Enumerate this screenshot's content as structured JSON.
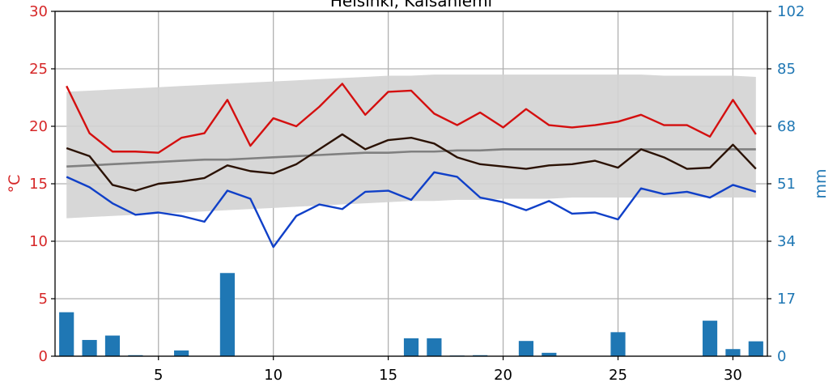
{
  "chart_data": {
    "type": "bar+line",
    "title": "Helsinki, Kaisaniemi",
    "ylabel_left": "°C",
    "ylabel_right": "mm",
    "xlim": [
      0.5,
      31.5
    ],
    "ylim_left": [
      0,
      30
    ],
    "ylim_right": [
      0,
      102
    ],
    "xticks": [
      5,
      10,
      15,
      20,
      25,
      30
    ],
    "yticks_left": [
      0,
      5,
      10,
      15,
      20,
      25,
      30
    ],
    "yticks_right": [
      0,
      17,
      34,
      51,
      68,
      85,
      102
    ],
    "grid": true,
    "x": [
      1,
      2,
      3,
      4,
      5,
      6,
      7,
      8,
      9,
      10,
      11,
      12,
      13,
      14,
      15,
      16,
      17,
      18,
      19,
      20,
      21,
      22,
      23,
      24,
      25,
      26,
      27,
      28,
      29,
      30,
      31
    ],
    "normal_range": {
      "upper": [
        23.0,
        23.1,
        23.2,
        23.3,
        23.4,
        23.5,
        23.6,
        23.7,
        23.8,
        23.9,
        24.0,
        24.1,
        24.2,
        24.3,
        24.4,
        24.4,
        24.5,
        24.5,
        24.5,
        24.5,
        24.5,
        24.5,
        24.5,
        24.5,
        24.5,
        24.5,
        24.4,
        24.4,
        24.4,
        24.4,
        24.3
      ],
      "lower": [
        12.0,
        12.1,
        12.2,
        12.3,
        12.4,
        12.5,
        12.6,
        12.7,
        12.8,
        12.9,
        13.0,
        13.1,
        13.2,
        13.3,
        13.4,
        13.5,
        13.5,
        13.6,
        13.6,
        13.7,
        13.7,
        13.7,
        13.8,
        13.8,
        13.8,
        13.8,
        13.8,
        13.8,
        13.8,
        13.8,
        13.8
      ],
      "color": "#d3d3d3"
    },
    "series": [
      {
        "style": "max",
        "color": "#d40f0f",
        "values": [
          23.5,
          19.4,
          17.8,
          17.8,
          17.7,
          19.0,
          19.4,
          22.3,
          18.3,
          20.7,
          20.0,
          21.7,
          23.7,
          21.0,
          23.0,
          23.1,
          21.1,
          20.1,
          21.2,
          19.9,
          21.5,
          20.1,
          19.9,
          20.1,
          20.4,
          21.0,
          20.1,
          20.1,
          19.1,
          22.3,
          19.3
        ]
      },
      {
        "style": "mean",
        "color": "#2b1204",
        "values": [
          18.1,
          17.4,
          14.9,
          14.4,
          15.0,
          15.2,
          15.5,
          16.6,
          16.1,
          15.9,
          16.7,
          18.0,
          19.3,
          18.0,
          18.8,
          19.0,
          18.5,
          17.3,
          16.7,
          16.5,
          16.3,
          16.6,
          16.7,
          17.0,
          16.4,
          18.0,
          17.3,
          16.3,
          16.4,
          18.4,
          16.3
        ]
      },
      {
        "style": "min",
        "color": "#1040c8",
        "values": [
          15.6,
          14.7,
          13.3,
          12.3,
          12.5,
          12.2,
          11.7,
          14.4,
          13.7,
          9.5,
          12.2,
          13.2,
          12.8,
          14.3,
          14.4,
          13.6,
          16.0,
          15.6,
          13.8,
          13.4,
          12.7,
          13.5,
          12.4,
          12.5,
          11.9,
          14.6,
          14.1,
          14.3,
          13.8,
          14.9,
          14.3
        ]
      },
      {
        "style": "normal_mean",
        "color": "#808080",
        "values": [
          16.5,
          16.6,
          16.7,
          16.8,
          16.9,
          17.0,
          17.1,
          17.1,
          17.2,
          17.3,
          17.4,
          17.5,
          17.6,
          17.7,
          17.7,
          17.8,
          17.8,
          17.9,
          17.9,
          18.0,
          18.0,
          18.0,
          18.0,
          18.0,
          18.0,
          18.0,
          18.0,
          18.0,
          18.0,
          18.0,
          18.0
        ]
      }
    ],
    "precipitation": {
      "color": "#1f77b4",
      "values": [
        13.0,
        4.8,
        6.1,
        0.3,
        0,
        1.7,
        0,
        24.6,
        0,
        0,
        0,
        0,
        0,
        0,
        0,
        5.3,
        5.3,
        0.2,
        0.3,
        0,
        4.5,
        1.0,
        0,
        0,
        7.1,
        0,
        0,
        0,
        10.5,
        2.1,
        4.4
      ]
    }
  }
}
